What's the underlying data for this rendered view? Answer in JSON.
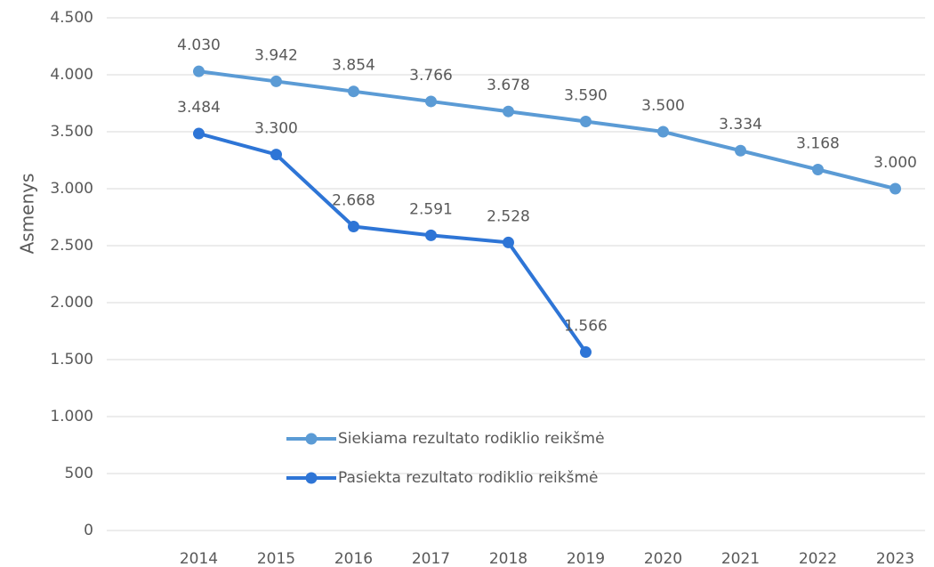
{
  "chart_data": {
    "type": "line",
    "y_label": "Asmenys",
    "categories": [
      "2014",
      "2015",
      "2016",
      "2017",
      "2018",
      "2019",
      "2020",
      "2021",
      "2022",
      "2023"
    ],
    "series": [
      {
        "name": "Siekiama rezultato rodiklio reikšmė",
        "color": "#5b9bd5",
        "values": [
          4030,
          3942,
          3854,
          3766,
          3678,
          3590,
          3500,
          3334,
          3168,
          3000
        ],
        "value_labels": [
          "4.030",
          "3.942",
          "3.854",
          "3.766",
          "3.678",
          "3.590",
          "3.500",
          "3.334",
          "3.168",
          "3.000"
        ]
      },
      {
        "name": "Pasiekta rezultato rodiklio reikšmė",
        "color": "#2e75d6",
        "values": [
          3484,
          3300,
          2668,
          2591,
          2528,
          1566,
          null,
          null,
          null,
          null
        ],
        "value_labels": [
          "3.484",
          "3.300",
          "2.668",
          "2.591",
          "2.528",
          "1.566",
          null,
          null,
          null,
          null
        ]
      }
    ],
    "ylim": [
      0,
      4500
    ],
    "yticks": [
      0,
      {
        "value": 500,
        "label": "500"
      },
      {
        "value": 1000,
        "label": "1.000"
      },
      {
        "value": 1500,
        "label": "1.500"
      },
      {
        "value": 2000,
        "label": "2.000"
      },
      {
        "value": 2500,
        "label": "2.500"
      },
      {
        "value": 3000,
        "label": "3.000"
      },
      {
        "value": 3500,
        "label": "3.500"
      },
      {
        "value": 4000,
        "label": "4.000"
      },
      {
        "value": 4500,
        "label": "4.500"
      }
    ],
    "grid": true
  }
}
